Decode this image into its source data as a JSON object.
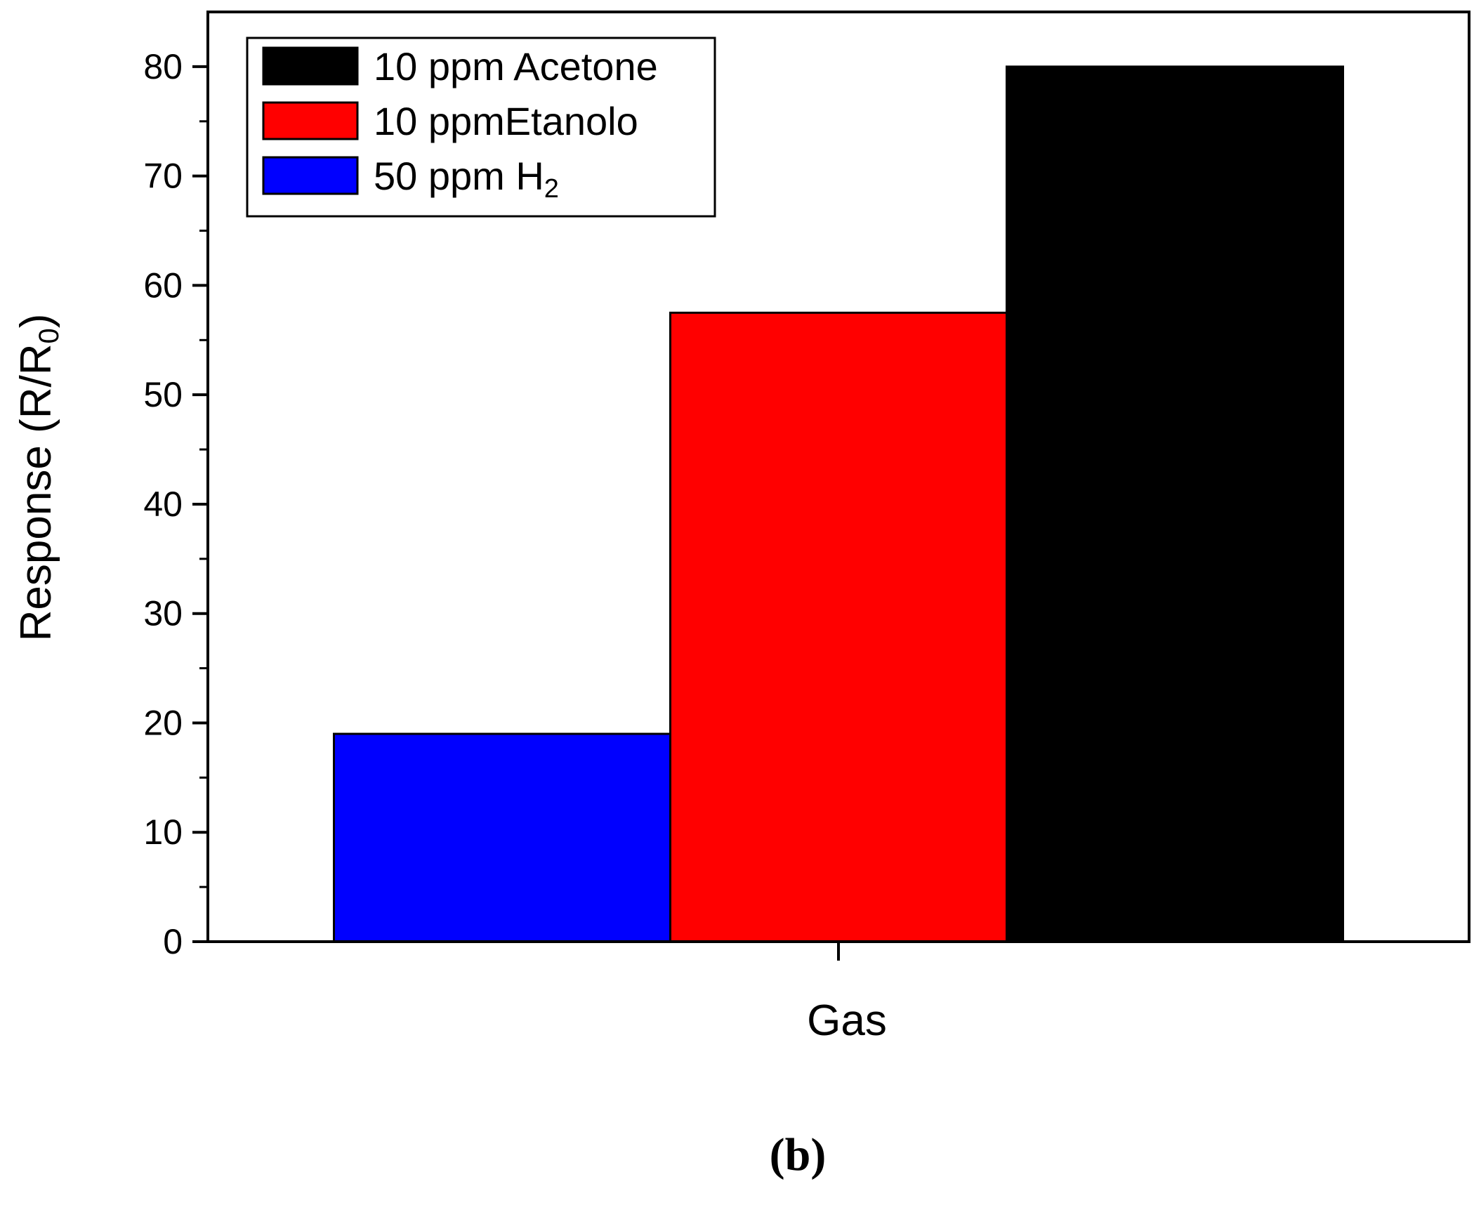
{
  "chart_data": {
    "type": "bar",
    "categories": [
      "Gas"
    ],
    "xlabel": "Gas",
    "ylabel": {
      "main": "Response (R/R",
      "sub": "0",
      "tail": ")"
    },
    "ylim": [
      0,
      85
    ],
    "yticks": [
      0,
      10,
      20,
      30,
      40,
      50,
      60,
      70,
      80
    ],
    "grid": false,
    "legend_position": "top-left",
    "series": [
      {
        "name": "50 ppm H",
        "name_sub": "2",
        "values": [
          19
        ],
        "color": "#0000ff"
      },
      {
        "name": "10 ppmEtanolo",
        "name_sub": "",
        "values": [
          57.5
        ],
        "color": "#ff0000"
      },
      {
        "name": "10 ppm Acetone",
        "name_sub": "",
        "values": [
          80
        ],
        "color": "#000000"
      }
    ],
    "legend_order": [
      2,
      1,
      0
    ],
    "panel_label": "(b)"
  }
}
